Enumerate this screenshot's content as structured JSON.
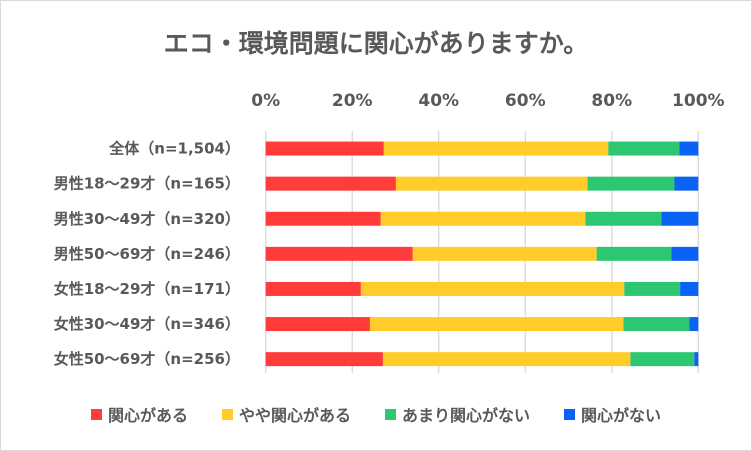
{
  "chart_data": {
    "type": "bar",
    "orientation": "horizontal",
    "stacked": "percent",
    "title": "エコ・環境問題に関心がありますか。",
    "categories": [
      "全体（n=1,504）",
      "男性18～29才（n=165）",
      "男性30～49才（n=320）",
      "男性50～69才（n=246）",
      "女性18～29才（n=171）",
      "女性30～49才（n=346）",
      "女性50～69才（n=256）"
    ],
    "series": [
      {
        "name": "関心がある",
        "color": "#ff3b3b",
        "values": [
          27.3,
          30.1,
          26.6,
          34.0,
          22.0,
          24.1,
          27.1
        ]
      },
      {
        "name": "やや関心がある",
        "color": "#ffcc29",
        "values": [
          51.9,
          44.3,
          47.3,
          42.5,
          60.9,
          58.6,
          57.2
        ]
      },
      {
        "name": "あまり関心がない",
        "color": "#2ec771",
        "values": [
          16.4,
          20.1,
          17.6,
          17.3,
          12.9,
          15.2,
          14.8
        ]
      },
      {
        "name": "関心がない",
        "color": "#0a63f5",
        "values": [
          4.4,
          5.5,
          8.5,
          6.2,
          4.2,
          2.1,
          0.9
        ]
      }
    ],
    "xaxis": {
      "ticks": [
        "0%",
        "20%",
        "40%",
        "60%",
        "80%",
        "100%"
      ],
      "range": [
        0,
        100
      ],
      "position": "top"
    },
    "grid": true,
    "legend": "bottom"
  }
}
